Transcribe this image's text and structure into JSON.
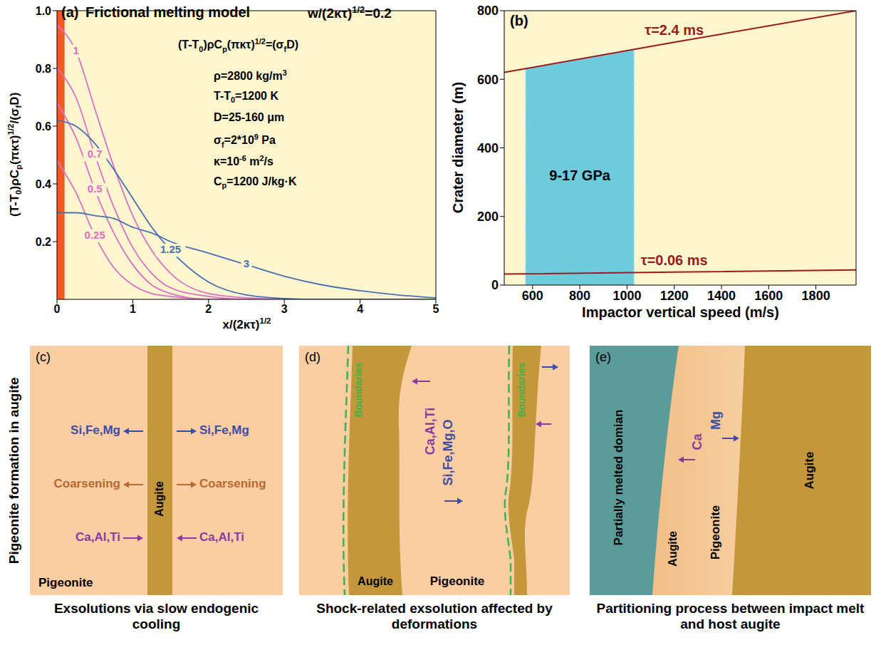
{
  "chart_data": [
    {
      "type": "line",
      "letter": "(a)",
      "title": "Frictional melting model",
      "subtitle": [
        "w/(2κτ)",
        {
          "sup": "1/2"
        },
        "=0.2"
      ],
      "equation": [
        "(T-T",
        {
          "sub": "0"
        },
        ")ρC",
        {
          "sub": "p"
        },
        "(πκτ)",
        {
          "sup": "1/2"
        },
        "=(σ",
        {
          "sub": "f"
        },
        "D)"
      ],
      "parameters": [
        [
          "ρ=2800 kg/m",
          {
            "sup": "3"
          }
        ],
        [
          "T-T",
          {
            "sub": "0"
          },
          "=1200 K"
        ],
        [
          "D=25-160 μm"
        ],
        [
          "σ",
          {
            "sub": "f"
          },
          "=2*10",
          {
            "sup": "9"
          },
          " Pa"
        ],
        [
          "κ=10",
          {
            "sup": "-6"
          },
          " m",
          {
            "sup": "2"
          },
          "/s"
        ],
        [
          "C",
          {
            "sub": "p"
          },
          "=1200 J/kg·K"
        ]
      ],
      "x_label": [
        "x/(2κτ)",
        {
          "sup": "1/2"
        }
      ],
      "y_label": [
        "(T-T",
        {
          "sub": "0"
        },
        ")ρC",
        {
          "sub": "p"
        },
        "(πκτ)",
        {
          "sup": "1/2"
        },
        "/(σ",
        {
          "sub": "f"
        },
        "D)"
      ],
      "xlim": [
        0,
        5
      ],
      "xticks": [
        0,
        1,
        2,
        3,
        4,
        5
      ],
      "ylim": [
        0,
        1
      ],
      "yticks": [
        0.2,
        0.4,
        0.6,
        0.8,
        {
          "value": 1,
          "label": "1.0"
        }
      ],
      "grid": false,
      "melt_zone": {
        "x": [
          0,
          0.1
        ],
        "color": "#f15a24"
      },
      "x": [
        0,
        0.25,
        0.5,
        0.75,
        1,
        1.25,
        1.5,
        2,
        2.5,
        3,
        3.5,
        4,
        4.5,
        5
      ],
      "series": [
        {
          "name": "1",
          "color": "#dd6fc4",
          "values": [
            0.95,
            0.86,
            0.66,
            0.46,
            0.29,
            0.17,
            0.09,
            0.02,
            0.005,
            0,
            0,
            0,
            0,
            0
          ]
        },
        {
          "name": "0.7",
          "color": "#dd6fc4",
          "values": [
            0.8,
            0.7,
            0.5,
            0.32,
            0.18,
            0.09,
            0.04,
            0.01,
            0,
            0,
            0,
            0,
            0,
            0
          ]
        },
        {
          "name": "0.5",
          "color": "#dd6fc4",
          "values": [
            0.68,
            0.56,
            0.38,
            0.23,
            0.12,
            0.05,
            0.02,
            0,
            0,
            0,
            0,
            0,
            0,
            0
          ]
        },
        {
          "name": "0.25",
          "color": "#dd6fc4",
          "values": [
            0.48,
            0.37,
            0.22,
            0.11,
            0.05,
            0.02,
            0.01,
            0,
            0,
            0,
            0,
            0,
            0,
            0
          ]
        },
        {
          "name": "1.25",
          "color": "#4a6fb3",
          "values": [
            0.62,
            0.6,
            0.54,
            0.45,
            0.35,
            0.25,
            0.17,
            0.06,
            0.015,
            0.003,
            0,
            0,
            0,
            0
          ]
        },
        {
          "name": "3",
          "color": "#4a6fb3",
          "values": [
            0.3,
            0.3,
            0.29,
            0.28,
            0.25,
            0.23,
            0.2,
            0.16,
            0.12,
            0.08,
            0.05,
            0.03,
            0.015,
            0.005
          ]
        }
      ]
    },
    {
      "type": "line",
      "letter": "(b)",
      "x_label": "Impactor vertical speed (m/s)",
      "y_label": "Crater diameter (m)",
      "xlim": [
        480,
        1970
      ],
      "xticks": [
        600,
        800,
        1000,
        1200,
        1400,
        1600,
        1800
      ],
      "ylim": [
        0,
        800
      ],
      "yticks": [
        0,
        200,
        400,
        600,
        800
      ],
      "grid": false,
      "x": [
        480,
        1200,
        1970
      ],
      "series": [
        {
          "name": "τ=2.4 ms",
          "color": "#9b1c1c",
          "values": [
            620,
            708,
            800
          ]
        },
        {
          "name": "τ=0.06 ms",
          "color": "#9b1c1c",
          "values": [
            32,
            38,
            44
          ]
        }
      ],
      "shaded_region": {
        "label": "9-17 GPa",
        "color": "#6ecbdc",
        "x": [
          570,
          1030
        ],
        "upper": [
          631,
          686
        ]
      }
    }
  ],
  "diagrams": {
    "row_label": "Pigeonite formation in augite",
    "c": {
      "letter": "(c)",
      "caption": "Exsolutions via slow endogenic cooling",
      "lamella": "Augite",
      "host": "Pigeonite",
      "fluxes": [
        {
          "text": "Si,Fe,Mg",
          "direction": "out",
          "color": "#3b4ea3"
        },
        {
          "text": "Coarsening",
          "direction": "out",
          "color": "#b5692e"
        },
        {
          "text": "Ca,Al,Ti",
          "direction": "in",
          "color": "#8b3a9f"
        }
      ]
    },
    "d": {
      "letter": "(d)",
      "caption": "Shock-related exsolution affected by deformations",
      "boundary": "Boundaries",
      "lamella": "Augite",
      "host": "Pigeonite",
      "to_augite": "Ca,Al,Ti",
      "to_pigeonite": "Si,Fe,Mg,O"
    },
    "e": {
      "letter": "(e)",
      "caption": "Partitioning process between impact melt and host augite",
      "melt": "Partially melted domian",
      "rim_augite": "Augite",
      "pigeonite": "Pigeonite",
      "host": "Augite",
      "to_melt": "Ca",
      "to_host": "Mg"
    }
  }
}
